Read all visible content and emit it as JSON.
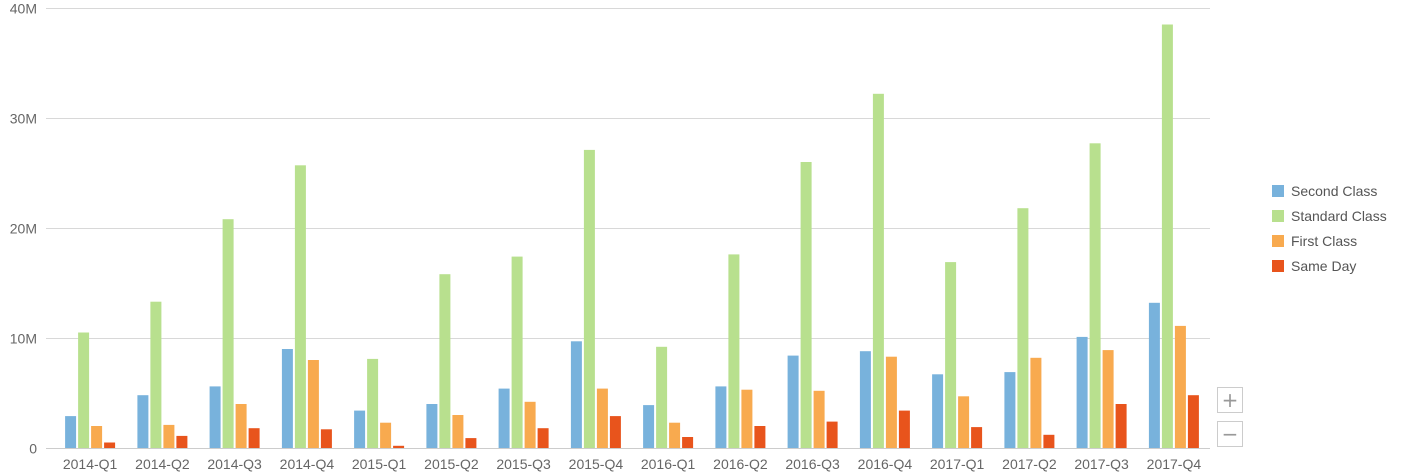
{
  "chart_data": {
    "type": "bar",
    "title": "",
    "xlabel": "",
    "ylabel": "",
    "categories": [
      "2014-Q1",
      "2014-Q2",
      "2014-Q3",
      "2014-Q4",
      "2015-Q1",
      "2015-Q2",
      "2015-Q3",
      "2015-Q4",
      "2016-Q1",
      "2016-Q2",
      "2016-Q3",
      "2016-Q4",
      "2017-Q1",
      "2017-Q2",
      "2017-Q3",
      "2017-Q4"
    ],
    "ylim": [
      0,
      40000000
    ],
    "yticks": [
      0,
      10000000,
      20000000,
      30000000,
      40000000
    ],
    "ytick_labels": [
      "0",
      "10M",
      "20M",
      "30M",
      "40M"
    ],
    "grid": true,
    "legend_position": "right",
    "series": [
      {
        "name": "Second Class",
        "color": "#78b2dc",
        "values": [
          2900000,
          4800000,
          5600000,
          9000000,
          3400000,
          4000000,
          5400000,
          9700000,
          3900000,
          5600000,
          8400000,
          8800000,
          6700000,
          6900000,
          10100000,
          13200000
        ]
      },
      {
        "name": "Standard Class",
        "color": "#b8e08e",
        "values": [
          10500000,
          13300000,
          20800000,
          25700000,
          8100000,
          15800000,
          17400000,
          27100000,
          9200000,
          17600000,
          26000000,
          32200000,
          16900000,
          21800000,
          27700000,
          38500000
        ]
      },
      {
        "name": "First Class",
        "color": "#f8aa4f",
        "values": [
          2000000,
          2100000,
          4000000,
          8000000,
          2300000,
          3000000,
          4200000,
          5400000,
          2300000,
          5300000,
          5200000,
          8300000,
          4700000,
          8200000,
          8900000,
          11100000
        ]
      },
      {
        "name": "Same Day",
        "color": "#e8541c",
        "values": [
          500000,
          1100000,
          1800000,
          1700000,
          200000,
          900000,
          1800000,
          2900000,
          1000000,
          2000000,
          2400000,
          3400000,
          1900000,
          1200000,
          4000000,
          4800000
        ]
      }
    ]
  },
  "controls": {
    "zoom_in": "+",
    "zoom_out": "−"
  }
}
